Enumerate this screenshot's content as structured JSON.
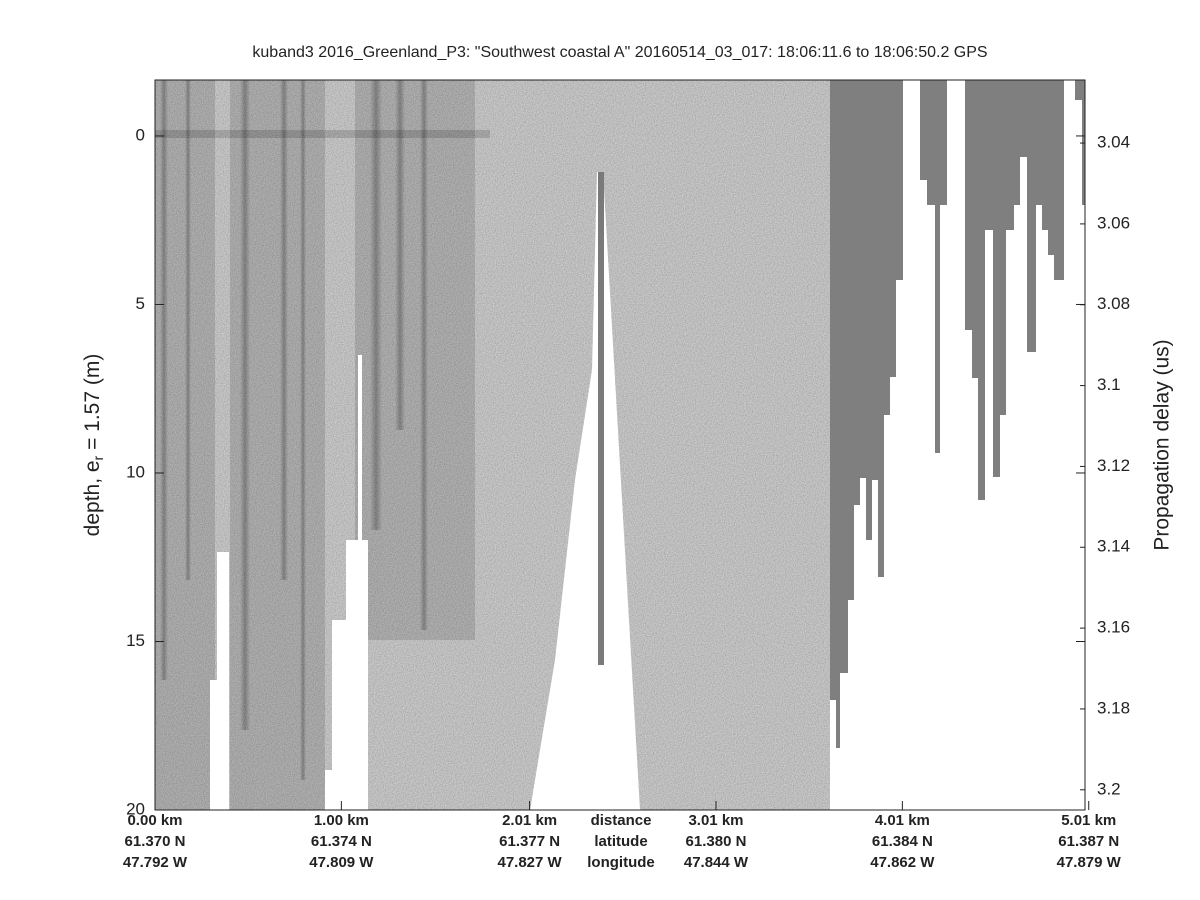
{
  "chart_data": {
    "type": "echogram",
    "title": "kuband3 2016_Greenland_P3: \"Southwest coastal A\"  20160514_03_017: 18:06:11.6 to 18:06:50.2 GPS",
    "ylabel_parts": [
      "depth, e",
      "r",
      " = 1.57 (m)"
    ],
    "y2label": "Propagation delay (us)",
    "xlabel_rows": [
      "distance",
      "latitude",
      "longitude"
    ],
    "xlim": [
      0,
      4.99
    ],
    "xticks": [
      {
        "value": 0,
        "label": "0.00 km"
      },
      {
        "value": 1.0,
        "label": "1.00 km"
      },
      {
        "value": 2.01,
        "label": "2.01 km"
      },
      {
        "value": 3.01,
        "label": "3.01 km"
      },
      {
        "value": 4.01,
        "label": "4.01 km"
      },
      {
        "value": 5.01,
        "label": "5.01 km"
      }
    ],
    "xtick_latitude": [
      "61.370 N",
      "61.374 N",
      "61.377 N",
      "61.380 N",
      "61.384 N",
      "61.387 N"
    ],
    "xtick_longitude": [
      "47.792 W",
      "47.809 W",
      "47.827 W",
      "47.844 W",
      "47.862 W",
      "47.879 W"
    ],
    "ylim": [
      -1.66,
      20
    ],
    "y_reversed": true,
    "yticks": [
      0,
      5,
      10,
      15,
      20
    ],
    "y2lim": [
      3.0244,
      3.205
    ],
    "y2ticks": [
      3.04,
      3.06,
      3.08,
      3.1,
      3.12,
      3.14,
      3.16,
      3.18,
      3.2
    ],
    "colormap": "gray"
  }
}
